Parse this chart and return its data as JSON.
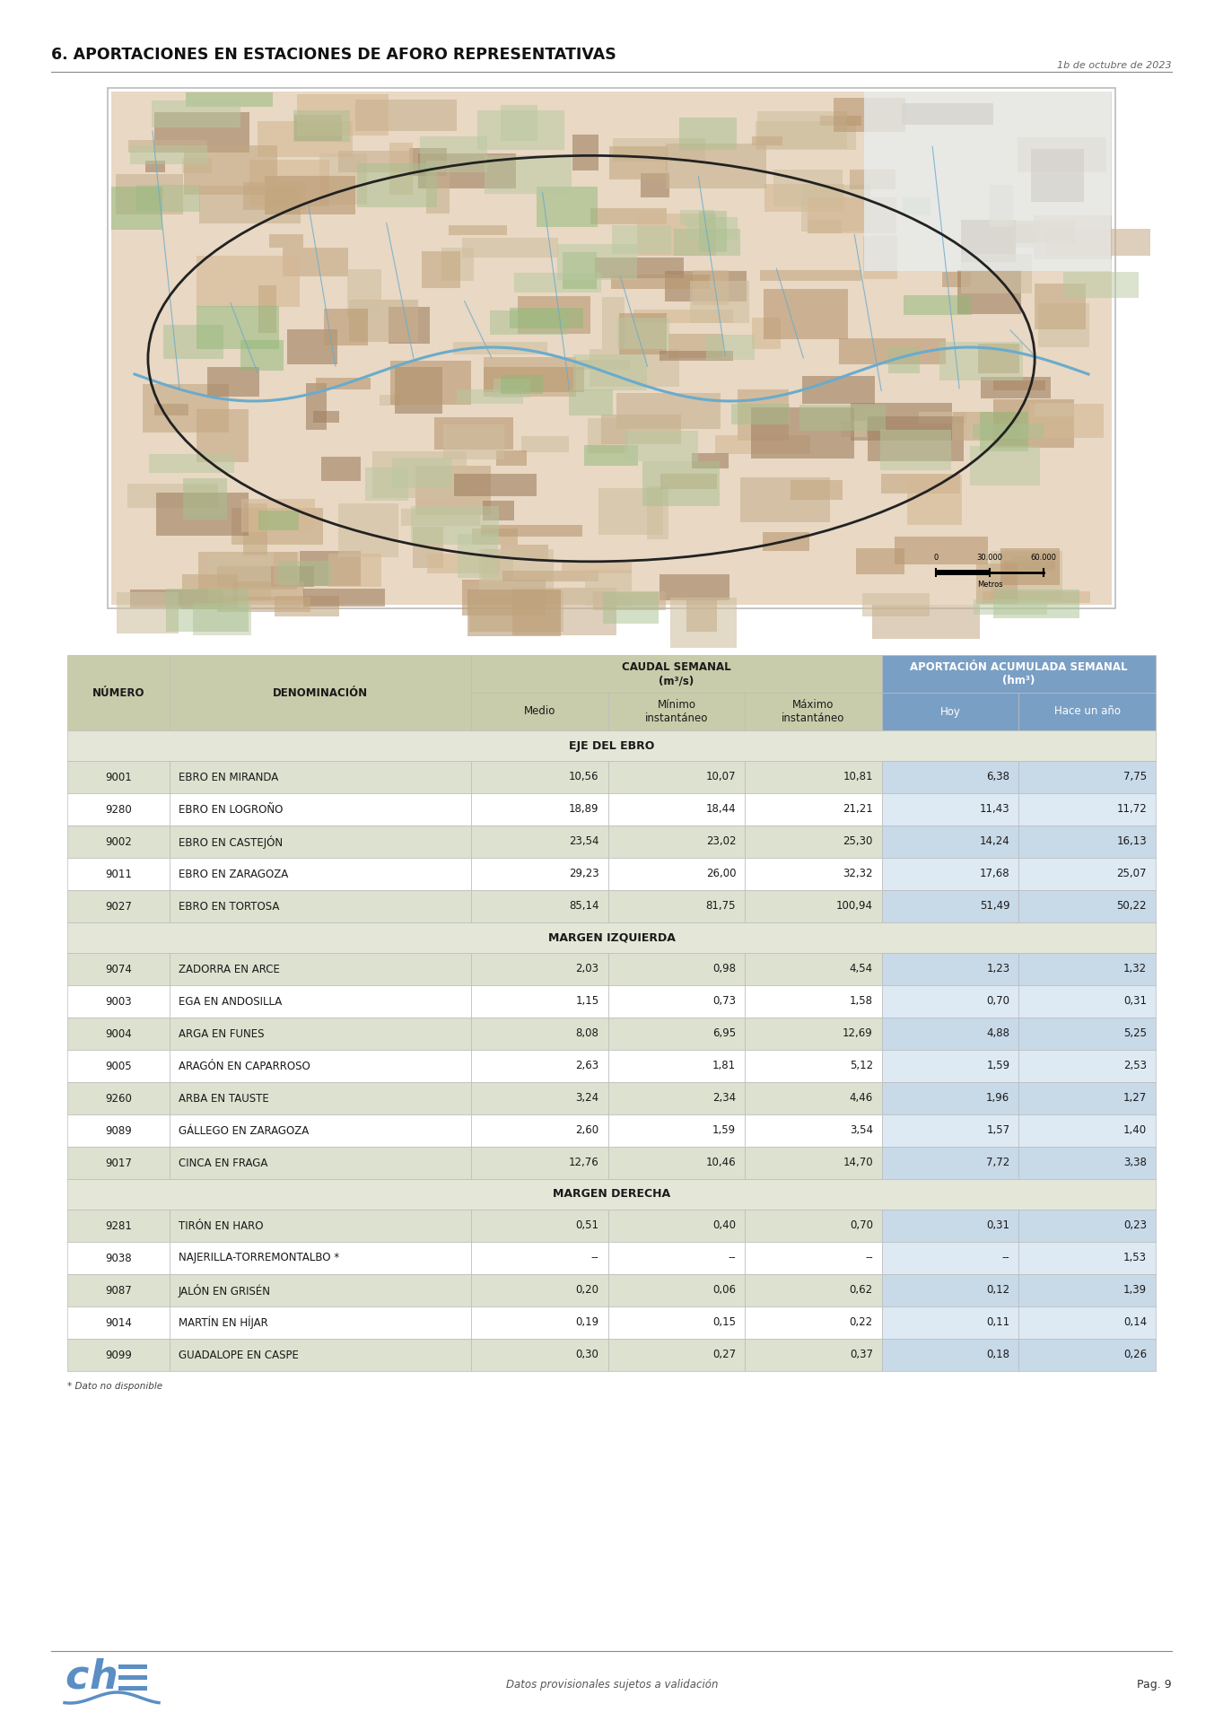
{
  "title": "6. APORTACIONES EN ESTACIONES DE AFORO REPRESENTATIVAS",
  "date": "1b de octubre de 2023",
  "footer_text": "Datos provisionales sujetos a validación",
  "footer_page": "Pag. 9",
  "footnote": "* Dato no disponible",
  "section_eje": "EJE DEL EBRO",
  "section_margen_izq": "MARGEN IZQUIERDA",
  "section_margen_der": "MARGEN DERECHA",
  "eje_rows": [
    {
      "num": "9001",
      "den": "EBRO EN MIRANDA",
      "medio": "10,56",
      "min": "10,07",
      "max": "10,81",
      "hoy": "6,38",
      "hace": "7,75"
    },
    {
      "num": "9280",
      "den": "EBRO EN LOGROÑO",
      "medio": "18,89",
      "min": "18,44",
      "max": "21,21",
      "hoy": "11,43",
      "hace": "11,72"
    },
    {
      "num": "9002",
      "den": "EBRO EN CASTEJÓN",
      "medio": "23,54",
      "min": "23,02",
      "max": "25,30",
      "hoy": "14,24",
      "hace": "16,13"
    },
    {
      "num": "9011",
      "den": "EBRO EN ZARAGOZA",
      "medio": "29,23",
      "min": "26,00",
      "max": "32,32",
      "hoy": "17,68",
      "hace": "25,07"
    },
    {
      "num": "9027",
      "den": "EBRO EN TORTOSA",
      "medio": "85,14",
      "min": "81,75",
      "max": "100,94",
      "hoy": "51,49",
      "hace": "50,22"
    }
  ],
  "izq_rows": [
    {
      "num": "9074",
      "den": "ZADORRA EN ARCE",
      "medio": "2,03",
      "min": "0,98",
      "max": "4,54",
      "hoy": "1,23",
      "hace": "1,32"
    },
    {
      "num": "9003",
      "den": "EGA EN ANDOSILLA",
      "medio": "1,15",
      "min": "0,73",
      "max": "1,58",
      "hoy": "0,70",
      "hace": "0,31"
    },
    {
      "num": "9004",
      "den": "ARGA EN FUNES",
      "medio": "8,08",
      "min": "6,95",
      "max": "12,69",
      "hoy": "4,88",
      "hace": "5,25"
    },
    {
      "num": "9005",
      "den": "ARAGÓN EN CAPARROSO",
      "medio": "2,63",
      "min": "1,81",
      "max": "5,12",
      "hoy": "1,59",
      "hace": "2,53"
    },
    {
      "num": "9260",
      "den": "ARBA EN TAUSTE",
      "medio": "3,24",
      "min": "2,34",
      "max": "4,46",
      "hoy": "1,96",
      "hace": "1,27"
    },
    {
      "num": "9089",
      "den": "GÁLLEGO EN ZARAGOZA",
      "medio": "2,60",
      "min": "1,59",
      "max": "3,54",
      "hoy": "1,57",
      "hace": "1,40"
    },
    {
      "num": "9017",
      "den": "CINCA EN FRAGA",
      "medio": "12,76",
      "min": "10,46",
      "max": "14,70",
      "hoy": "7,72",
      "hace": "3,38"
    }
  ],
  "der_rows": [
    {
      "num": "9281",
      "den": "TIRÓN EN HARO",
      "asterisk": false,
      "medio": "0,51",
      "min": "0,40",
      "max": "0,70",
      "hoy": "0,31",
      "hace": "0,23"
    },
    {
      "num": "9038",
      "den": "NAJERILLA-TORREMONTALBO",
      "asterisk": true,
      "medio": "--",
      "min": "--",
      "max": "--",
      "hoy": "--",
      "hace": "1,53"
    },
    {
      "num": "9087",
      "den": "JALÓN EN GRISÉN",
      "asterisk": false,
      "medio": "0,20",
      "min": "0,06",
      "max": "0,62",
      "hoy": "0,12",
      "hace": "1,39"
    },
    {
      "num": "9014",
      "den": "MARTÍN EN HÍJAR",
      "asterisk": false,
      "medio": "0,19",
      "min": "0,15",
      "max": "0,22",
      "hoy": "0,11",
      "hace": "0,14"
    },
    {
      "num": "9099",
      "den": "GUADALOPE EN CASPE",
      "asterisk": false,
      "medio": "0,30",
      "min": "0,27",
      "max": "0,37",
      "hoy": "0,18",
      "hace": "0,26"
    }
  ],
  "col_header_bg_green": "#c8ccaa",
  "col_header_bg_blue": "#7a9fc4",
  "row_green_dark": "#dde1cf",
  "row_white": "#ffffff",
  "row_blue_dark": "#c8d9e8",
  "row_blue_light": "#ddeaf4",
  "section_bg": "#e4e7d8",
  "border_color": "#bbbbbb",
  "text_dark": "#1a1a1a"
}
